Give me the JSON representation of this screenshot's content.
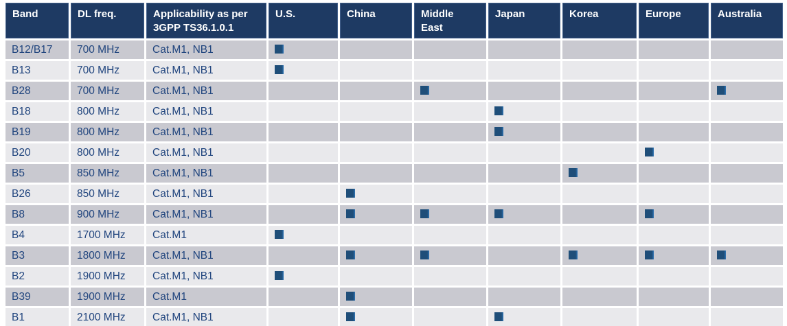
{
  "colors": {
    "header_bg": "#1e3a63",
    "header_border": "#44618c",
    "header_text": "#ffffff",
    "row_dark": "#c9c9d0",
    "row_light": "#e9e9ec",
    "body_text": "#21457e",
    "marker": "#1f4e79",
    "marker_edge": "#2e74b5",
    "background": "#ffffff"
  },
  "icons": {
    "presence_marker": "filled-square"
  },
  "table": {
    "columns": [
      "Band",
      "DL freq.",
      "Applicability as per 3GPP TS36.1.0.1",
      "U.S.",
      "China",
      "Middle East",
      "Japan",
      "Korea",
      "Europe",
      "Australia"
    ],
    "region_columns": [
      "U.S.",
      "China",
      "Middle East",
      "Japan",
      "Korea",
      "Europe",
      "Australia"
    ],
    "rows": [
      {
        "band": "B12/B17",
        "dl_freq": "700 MHz",
        "applicability": "Cat.M1, NB1",
        "markers": [
          1,
          0,
          0,
          0,
          0,
          0,
          0
        ]
      },
      {
        "band": "B13",
        "dl_freq": "700 MHz",
        "applicability": "Cat.M1, NB1",
        "markers": [
          1,
          0,
          0,
          0,
          0,
          0,
          0
        ]
      },
      {
        "band": "B28",
        "dl_freq": "700 MHz",
        "applicability": "Cat.M1, NB1",
        "markers": [
          0,
          0,
          1,
          0,
          0,
          0,
          1
        ]
      },
      {
        "band": "B18",
        "dl_freq": "800 MHz",
        "applicability": "Cat.M1, NB1",
        "markers": [
          0,
          0,
          0,
          1,
          0,
          0,
          0
        ]
      },
      {
        "band": "B19",
        "dl_freq": "800 MHz",
        "applicability": "Cat.M1, NB1",
        "markers": [
          0,
          0,
          0,
          1,
          0,
          0,
          0
        ]
      },
      {
        "band": "B20",
        "dl_freq": "800 MHz",
        "applicability": "Cat.M1, NB1",
        "markers": [
          0,
          0,
          0,
          0,
          0,
          1,
          0
        ]
      },
      {
        "band": "B5",
        "dl_freq": "850 MHz",
        "applicability": "Cat.M1, NB1",
        "markers": [
          0,
          0,
          0,
          0,
          1,
          0,
          0
        ]
      },
      {
        "band": "B26",
        "dl_freq": "850 MHz",
        "applicability": "Cat.M1, NB1",
        "markers": [
          0,
          1,
          0,
          0,
          0,
          0,
          0
        ]
      },
      {
        "band": "B8",
        "dl_freq": "900 MHz",
        "applicability": "Cat.M1, NB1",
        "markers": [
          0,
          1,
          1,
          1,
          0,
          1,
          0
        ]
      },
      {
        "band": "B4",
        "dl_freq": "1700 MHz",
        "applicability": "Cat.M1",
        "markers": [
          1,
          0,
          0,
          0,
          0,
          0,
          0
        ]
      },
      {
        "band": "B3",
        "dl_freq": "1800 MHz",
        "applicability": "Cat.M1, NB1",
        "markers": [
          0,
          1,
          1,
          0,
          1,
          1,
          1
        ]
      },
      {
        "band": "B2",
        "dl_freq": "1900 MHz",
        "applicability": "Cat.M1, NB1",
        "markers": [
          1,
          0,
          0,
          0,
          0,
          0,
          0
        ]
      },
      {
        "band": "B39",
        "dl_freq": "1900 MHz",
        "applicability": "Cat.M1",
        "markers": [
          0,
          1,
          0,
          0,
          0,
          0,
          0
        ]
      },
      {
        "band": "B1",
        "dl_freq": "2100 MHz",
        "applicability": "Cat.M1, NB1",
        "markers": [
          0,
          1,
          0,
          1,
          0,
          0,
          0
        ]
      }
    ]
  }
}
